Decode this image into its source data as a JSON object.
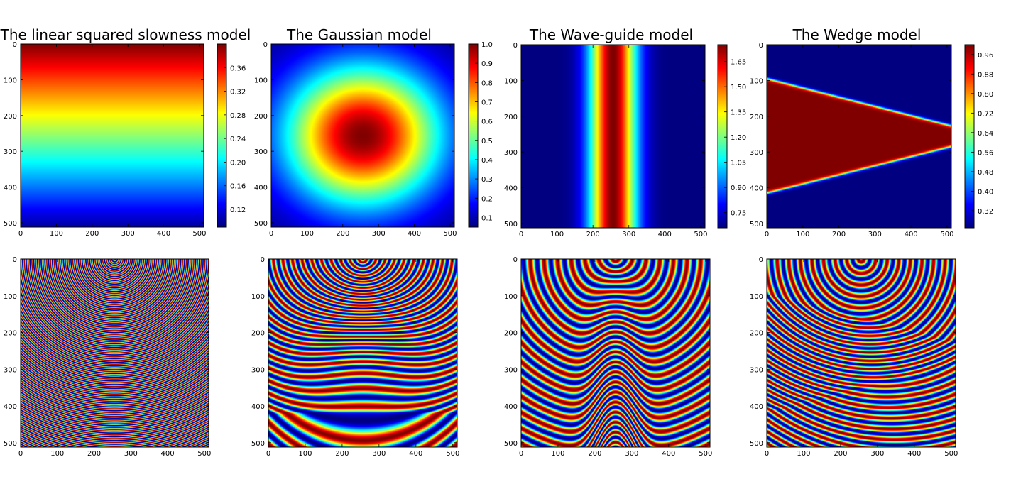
{
  "chart_data": [
    {
      "type": "heatmap",
      "title": "The linear squared slowness model",
      "model": "linear",
      "xlim": [
        0,
        512
      ],
      "ylim": [
        512,
        0
      ],
      "xticks": [
        "0",
        "100",
        "200",
        "300",
        "400",
        "500"
      ],
      "yticks": [
        "0",
        "100",
        "200",
        "300",
        "400",
        "500"
      ],
      "colorbar": {
        "range": [
          0.09,
          0.4
        ],
        "ticks": [
          "0.12",
          "0.16",
          "0.20",
          "0.24",
          "0.28",
          "0.32",
          "0.36"
        ]
      },
      "colormap": "jet"
    },
    {
      "type": "heatmap",
      "title": "The Gaussian model",
      "model": "gaussian",
      "xlim": [
        0,
        512
      ],
      "ylim": [
        512,
        0
      ],
      "xticks": [
        "0",
        "100",
        "200",
        "300",
        "400",
        "500"
      ],
      "yticks": [
        "0",
        "100",
        "200",
        "300",
        "400",
        "500"
      ],
      "colorbar": {
        "range": [
          0.05,
          1.0
        ],
        "ticks": [
          "0.1",
          "0.2",
          "0.3",
          "0.4",
          "0.5",
          "0.6",
          "0.7",
          "0.8",
          "0.9",
          "1.0"
        ]
      },
      "colormap": "jet"
    },
    {
      "type": "heatmap",
      "title": "The Wave-guide model",
      "model": "waveguide",
      "xlim": [
        0,
        512
      ],
      "ylim": [
        512,
        0
      ],
      "xticks": [
        "0",
        "100",
        "200",
        "300",
        "400",
        "500"
      ],
      "yticks": [
        "0",
        "100",
        "200",
        "300",
        "400",
        "500"
      ],
      "colorbar": {
        "range": [
          0.66,
          1.75
        ],
        "ticks": [
          "0.75",
          "0.90",
          "1.05",
          "1.20",
          "1.35",
          "1.50",
          "1.65"
        ]
      },
      "colormap": "jet"
    },
    {
      "type": "heatmap",
      "title": "The Wedge model",
      "model": "wedge",
      "xlim": [
        0,
        512
      ],
      "ylim": [
        512,
        0
      ],
      "xticks": [
        "0",
        "100",
        "200",
        "300",
        "400",
        "500"
      ],
      "yticks": [
        "0",
        "100",
        "200",
        "300",
        "400",
        "500"
      ],
      "colorbar": {
        "range": [
          0.25,
          1.0
        ],
        "ticks": [
          "0.32",
          "0.40",
          "0.48",
          "0.56",
          "0.64",
          "0.72",
          "0.80",
          "0.88",
          "0.96"
        ]
      },
      "colormap": "jet"
    },
    {
      "type": "heatmap",
      "title": "",
      "model": "linear-wavefield",
      "xlim": [
        0,
        512
      ],
      "ylim": [
        512,
        0
      ],
      "xticks": [
        "0",
        "100",
        "200",
        "300",
        "400",
        "500"
      ],
      "yticks": [
        "0",
        "100",
        "200",
        "300",
        "400",
        "500"
      ],
      "colormap": "jet"
    },
    {
      "type": "heatmap",
      "title": "",
      "model": "gaussian-wavefield",
      "xlim": [
        0,
        512
      ],
      "ylim": [
        512,
        0
      ],
      "xticks": [
        "0",
        "100",
        "200",
        "300",
        "400",
        "500"
      ],
      "yticks": [
        "0",
        "100",
        "200",
        "300",
        "400",
        "500"
      ],
      "colormap": "jet"
    },
    {
      "type": "heatmap",
      "title": "",
      "model": "waveguide-wavefield",
      "xlim": [
        0,
        512
      ],
      "ylim": [
        512,
        0
      ],
      "xticks": [
        "0",
        "100",
        "200",
        "300",
        "400",
        "500"
      ],
      "yticks": [
        "0",
        "100",
        "200",
        "300",
        "400",
        "500"
      ],
      "colormap": "jet"
    },
    {
      "type": "heatmap",
      "title": "",
      "model": "wedge-wavefield",
      "xlim": [
        0,
        512
      ],
      "ylim": [
        512,
        0
      ],
      "xticks": [
        "0",
        "100",
        "200",
        "300",
        "400",
        "500"
      ],
      "yticks": [
        "0",
        "100",
        "200",
        "300",
        "400",
        "500"
      ],
      "colormap": "jet"
    }
  ]
}
